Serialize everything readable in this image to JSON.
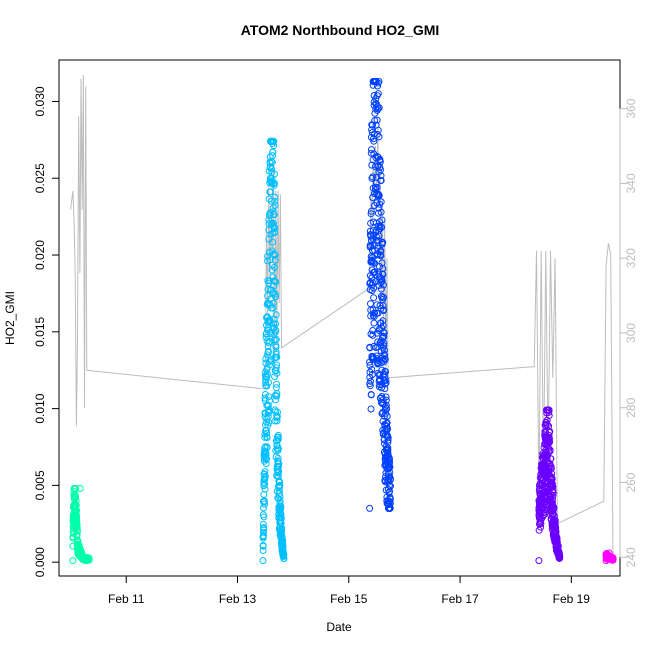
{
  "chart_data": {
    "type": "scatter",
    "title": "ATOM2 Northbound HO2_GMI",
    "xlabel": "Date",
    "ylabel": "HO2_GMI",
    "xlim": [
      "2017-02-09 19:00",
      "2017-02-19 21:00"
    ],
    "ylim": [
      -0.0009,
      0.0327
    ],
    "x_ticks": [
      "Feb 11",
      "Feb 13",
      "Feb 15",
      "Feb 17",
      "Feb 19"
    ],
    "x_tick_dates": [
      "2017-02-11",
      "2017-02-13",
      "2017-02-15",
      "2017-02-17",
      "2017-02-19"
    ],
    "y_ticks": [
      "0.000",
      "0.005",
      "0.010",
      "0.015",
      "0.020",
      "0.025",
      "0.030"
    ],
    "y2_ticks": [
      "240",
      "260",
      "280",
      "300",
      "320",
      "340",
      "360"
    ],
    "y2_lim": [
      235,
      373
    ],
    "y2_color": "#bdbdbd",
    "grid": false,
    "legend": "none",
    "flights": [
      {
        "start": "2017-02-10 01:00",
        "end": "2017-02-10 08:00",
        "min": 0.0001,
        "max": 0.0048,
        "color": "#00ffaa",
        "profile": [
          [
            0,
            0.0019
          ],
          [
            0.12,
            0.0046
          ],
          [
            0.2,
            0.003
          ],
          [
            0.3,
            0.001
          ],
          [
            0.45,
            0.0006
          ],
          [
            0.6,
            0.0003
          ],
          [
            0.75,
            0.0002
          ],
          [
            1,
            0.0002
          ]
        ]
      },
      {
        "start": "2017-02-13 11:00",
        "end": "2017-02-13 20:00",
        "min": 0.0001,
        "max": 0.0274,
        "color": "#00bfff",
        "profile": [
          [
            0,
            0.0012
          ],
          [
            0.08,
            0.007
          ],
          [
            0.2,
            0.013
          ],
          [
            0.35,
            0.02
          ],
          [
            0.42,
            0.0245
          ],
          [
            0.5,
            0.0255
          ],
          [
            0.58,
            0.015
          ],
          [
            0.68,
            0.008
          ],
          [
            0.78,
            0.004
          ],
          [
            0.9,
            0.0015
          ],
          [
            1,
            0.0003
          ]
        ]
      },
      {
        "start": "2017-02-15 09:00",
        "end": "2017-02-15 18:00",
        "min": 0.0035,
        "max": 0.0313,
        "color": "#0040ff",
        "profile": [
          [
            0,
            0.0125
          ],
          [
            0.1,
            0.021
          ],
          [
            0.2,
            0.024
          ],
          [
            0.25,
            0.029
          ],
          [
            0.32,
            0.024
          ],
          [
            0.45,
            0.021
          ],
          [
            0.6,
            0.016
          ],
          [
            0.72,
            0.01
          ],
          [
            0.85,
            0.0065
          ],
          [
            1,
            0.0038
          ]
        ]
      },
      {
        "start": "2017-02-18 10:00",
        "end": "2017-02-18 19:00",
        "min": 0.0001,
        "max": 0.0099,
        "color": "#6a00ff",
        "profile": [
          [
            0,
            0.0035
          ],
          [
            0.2,
            0.005
          ],
          [
            0.35,
            0.007
          ],
          [
            0.45,
            0.009
          ],
          [
            0.55,
            0.005
          ],
          [
            0.7,
            0.003
          ],
          [
            0.85,
            0.0012
          ],
          [
            1,
            0.0003
          ]
        ]
      },
      {
        "start": "2017-02-19 15:00",
        "end": "2017-02-19 18:00",
        "min": 0.0001,
        "max": 0.0006,
        "color": "#ff00ff",
        "profile": [
          [
            0,
            0.0004
          ],
          [
            0.4,
            0.0003
          ],
          [
            1,
            0.0002
          ]
        ]
      }
    ],
    "altitude_series": {
      "color": "#bdbdbd",
      "points": [
        [
          "2017-02-10 00:00",
          333
        ],
        [
          "2017-02-10 01:00",
          338
        ],
        [
          "2017-02-10 01:30",
          330
        ],
        [
          "2017-02-10 02:00",
          316
        ],
        [
          "2017-02-10 02:30",
          275
        ],
        [
          "2017-02-10 03:00",
          298
        ],
        [
          "2017-02-10 03:30",
          358
        ],
        [
          "2017-02-10 04:00",
          316
        ],
        [
          "2017-02-10 04:30",
          368
        ],
        [
          "2017-02-10 05:00",
          333
        ],
        [
          "2017-02-10 05:30",
          369
        ],
        [
          "2017-02-10 06:00",
          280
        ],
        [
          "2017-02-10 06:30",
          366
        ],
        [
          "2017-02-10 07:00",
          290
        ],
        [
          "2017-02-13 12:00",
          285
        ],
        [
          "2017-02-13 12:30",
          330
        ],
        [
          "2017-02-13 13:00",
          305
        ],
        [
          "2017-02-13 13:30",
          340
        ],
        [
          "2017-02-13 14:00",
          312
        ],
        [
          "2017-02-13 14:30",
          330
        ],
        [
          "2017-02-13 15:00",
          320
        ],
        [
          "2017-02-13 15:30",
          345
        ],
        [
          "2017-02-13 16:00",
          290
        ],
        [
          "2017-02-13 16:30",
          338
        ],
        [
          "2017-02-13 17:00",
          300
        ],
        [
          "2017-02-13 17:30",
          338
        ],
        [
          "2017-02-13 18:00",
          308
        ],
        [
          "2017-02-13 18:30",
          337
        ],
        [
          "2017-02-13 19:00",
          296
        ],
        [
          "2017-02-15 09:00",
          312
        ],
        [
          "2017-02-15 09:30",
          338
        ],
        [
          "2017-02-15 10:00",
          330
        ],
        [
          "2017-02-15 10:30",
          346
        ],
        [
          "2017-02-15 11:00",
          337
        ],
        [
          "2017-02-15 11:30",
          350
        ],
        [
          "2017-02-15 12:00",
          338
        ],
        [
          "2017-02-15 12:30",
          355
        ],
        [
          "2017-02-15 13:00",
          334
        ],
        [
          "2017-02-15 13:30",
          345
        ],
        [
          "2017-02-15 14:00",
          310
        ],
        [
          "2017-02-15 14:30",
          336
        ],
        [
          "2017-02-15 15:00",
          300
        ],
        [
          "2017-02-15 15:30",
          330
        ],
        [
          "2017-02-15 16:00",
          290
        ],
        [
          "2017-02-15 16:30",
          320
        ],
        [
          "2017-02-15 17:00",
          288
        ],
        [
          "2017-02-18 08:00",
          291
        ],
        [
          "2017-02-18 09:00",
          322
        ],
        [
          "2017-02-18 10:00",
          256
        ],
        [
          "2017-02-18 11:00",
          322
        ],
        [
          "2017-02-18 12:00",
          262
        ],
        [
          "2017-02-18 13:00",
          322
        ],
        [
          "2017-02-18 14:00",
          266
        ],
        [
          "2017-02-18 15:00",
          322
        ],
        [
          "2017-02-18 16:00",
          288
        ],
        [
          "2017-02-18 17:00",
          320
        ],
        [
          "2017-02-18 18:00",
          249
        ],
        [
          "2017-02-19 14:00",
          255
        ],
        [
          "2017-02-19 15:00",
          318
        ],
        [
          "2017-02-19 16:00",
          324
        ],
        [
          "2017-02-19 17:00",
          321
        ],
        [
          "2017-02-19 18:00",
          240
        ]
      ]
    }
  }
}
